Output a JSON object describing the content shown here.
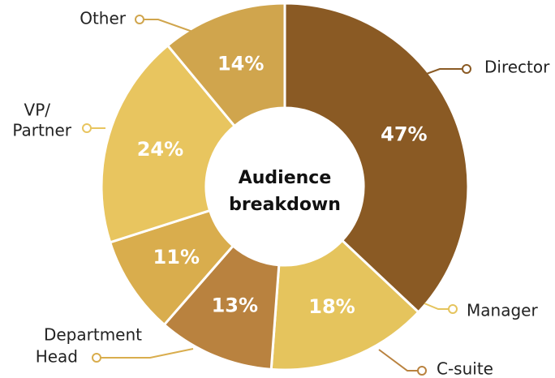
{
  "chart_data": {
    "type": "pie",
    "center_title_lines": [
      "Audience",
      "breakdown"
    ],
    "series": [
      {
        "values": [
          47,
          18,
          13,
          11,
          24,
          14
        ],
        "labels": [
          [
            "Director"
          ],
          [
            "Manager"
          ],
          [
            "C-suite"
          ],
          [
            "Department",
            "Head"
          ],
          [
            "VP/",
            "Partner"
          ],
          [
            "Other"
          ]
        ],
        "value_labels": [
          "47%",
          "18%",
          "13%",
          "11%",
          "24%",
          "14%"
        ]
      }
    ],
    "slice_colors": [
      "#8a5a24",
      "#e5c45d",
      "#b9823f",
      "#d9ad4d",
      "#e8c55f",
      "#d0a54d"
    ],
    "legend": "none"
  }
}
